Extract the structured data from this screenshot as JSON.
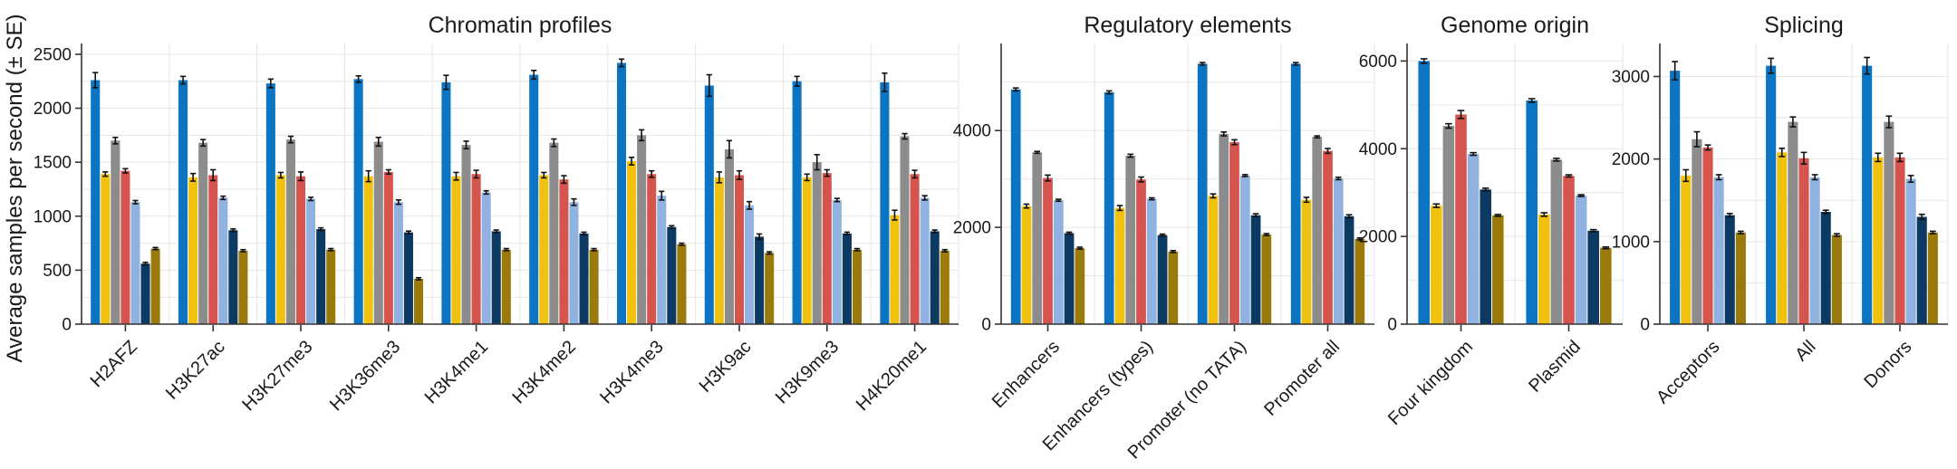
{
  "ylabel": "Average samples per second (± SE)",
  "series_colors": [
    "#0b75c4",
    "#f0c20f",
    "#8c8c8c",
    "#d6544e",
    "#8fb2e0",
    "#0d3a62",
    "#9a7a0b"
  ],
  "chart_data": [
    {
      "type": "bar",
      "title": "Chromatin profiles",
      "ylim": [
        0,
        2600
      ],
      "yticks": [
        0,
        500,
        1000,
        1500,
        2000,
        2500
      ],
      "grid": true,
      "categories": [
        "H2AFZ",
        "H3K27ac",
        "H3K27me3",
        "H3K36me3",
        "H3K4me1",
        "H3K4me2",
        "H3K4me3",
        "H3K9ac",
        "H3K9me3",
        "H4K20me1"
      ],
      "series": [
        {
          "values": [
            2260,
            2260,
            2230,
            2270,
            2240,
            2310,
            2420,
            2210,
            2250,
            2240
          ],
          "se": [
            70,
            35,
            40,
            30,
            65,
            40,
            35,
            100,
            45,
            85
          ]
        },
        {
          "values": [
            1390,
            1360,
            1380,
            1370,
            1370,
            1380,
            1510,
            1360,
            1360,
            1010
          ],
          "se": [
            20,
            35,
            25,
            50,
            35,
            25,
            35,
            50,
            30,
            45
          ]
        },
        {
          "values": [
            1700,
            1680,
            1710,
            1690,
            1660,
            1680,
            1750,
            1620,
            1500,
            1740
          ],
          "se": [
            30,
            30,
            30,
            40,
            35,
            35,
            50,
            80,
            70,
            25
          ]
        },
        {
          "values": [
            1420,
            1380,
            1370,
            1410,
            1390,
            1340,
            1390,
            1380,
            1400,
            1390
          ],
          "se": [
            20,
            50,
            40,
            20,
            35,
            35,
            30,
            40,
            30,
            35
          ]
        },
        {
          "values": [
            1130,
            1170,
            1160,
            1130,
            1220,
            1130,
            1190,
            1100,
            1150,
            1170
          ],
          "se": [
            15,
            15,
            15,
            20,
            15,
            30,
            40,
            35,
            15,
            20
          ]
        },
        {
          "values": [
            560,
            870,
            880,
            850,
            860,
            840,
            900,
            810,
            840,
            860
          ],
          "se": [
            12,
            12,
            12,
            12,
            12,
            12,
            12,
            25,
            12,
            12
          ]
        },
        {
          "values": [
            700,
            680,
            690,
            420,
            690,
            690,
            740,
            660,
            690,
            680
          ],
          "se": [
            10,
            10,
            10,
            10,
            10,
            10,
            10,
            10,
            10,
            10
          ]
        }
      ]
    },
    {
      "type": "bar",
      "title": "Regulatory elements",
      "ylim": [
        0,
        5800
      ],
      "yticks": [
        0,
        2000,
        4000
      ],
      "grid": true,
      "categories": [
        "Enhancers",
        "Enhancers (types)",
        "Promoter (no TATA)",
        "Promoter all"
      ],
      "series": [
        {
          "values": [
            4850,
            4790,
            5380,
            5380
          ],
          "se": [
            30,
            30,
            25,
            25
          ]
        },
        {
          "values": [
            2440,
            2400,
            2650,
            2570
          ],
          "se": [
            40,
            50,
            40,
            50
          ]
        },
        {
          "values": [
            3550,
            3480,
            3930,
            3870
          ],
          "se": [
            20,
            30,
            40,
            20
          ]
        },
        {
          "values": [
            3020,
            2990,
            3760,
            3580
          ],
          "se": [
            60,
            50,
            50,
            50
          ]
        },
        {
          "values": [
            2560,
            2590,
            3070,
            3010
          ],
          "se": [
            20,
            20,
            20,
            25
          ]
        },
        {
          "values": [
            1880,
            1840,
            2250,
            2230
          ],
          "se": [
            20,
            20,
            30,
            30
          ]
        },
        {
          "values": [
            1570,
            1500,
            1850,
            1760
          ],
          "se": [
            20,
            20,
            20,
            20
          ]
        }
      ]
    },
    {
      "type": "bar",
      "title": "Genome origin",
      "ylim": [
        0,
        6400
      ],
      "yticks": [
        0,
        2000,
        4000,
        6000
      ],
      "grid": true,
      "categories": [
        "Four kingdom",
        "Plasmid"
      ],
      "series": [
        {
          "values": [
            6000,
            5100
          ],
          "se": [
            50,
            40
          ]
        },
        {
          "values": [
            2700,
            2500
          ],
          "se": [
            40,
            40
          ]
        },
        {
          "values": [
            4520,
            3750
          ],
          "se": [
            50,
            30
          ]
        },
        {
          "values": [
            4780,
            3380
          ],
          "se": [
            90,
            25
          ]
        },
        {
          "values": [
            3880,
            2930
          ],
          "se": [
            30,
            20
          ]
        },
        {
          "values": [
            3070,
            2130
          ],
          "se": [
            30,
            25
          ]
        },
        {
          "values": [
            2480,
            1740
          ],
          "se": [
            20,
            20
          ]
        }
      ]
    },
    {
      "type": "bar",
      "title": "Splicing",
      "ylim": [
        0,
        3400
      ],
      "yticks": [
        0,
        1000,
        2000,
        3000
      ],
      "grid": true,
      "categories": [
        "Acceptors",
        "All",
        "Donors"
      ],
      "series": [
        {
          "values": [
            3070,
            3130,
            3130
          ],
          "se": [
            110,
            90,
            100
          ]
        },
        {
          "values": [
            1800,
            2080,
            2020
          ],
          "se": [
            70,
            50,
            50
          ]
        },
        {
          "values": [
            2240,
            2450,
            2450
          ],
          "se": [
            90,
            60,
            70
          ]
        },
        {
          "values": [
            2140,
            2010,
            2020
          ],
          "se": [
            30,
            70,
            50
          ]
        },
        {
          "values": [
            1780,
            1780,
            1760
          ],
          "se": [
            30,
            30,
            40
          ]
        },
        {
          "values": [
            1320,
            1360,
            1300
          ],
          "se": [
            20,
            20,
            30
          ]
        },
        {
          "values": [
            1110,
            1080,
            1110
          ],
          "se": [
            15,
            15,
            15
          ]
        }
      ]
    }
  ]
}
